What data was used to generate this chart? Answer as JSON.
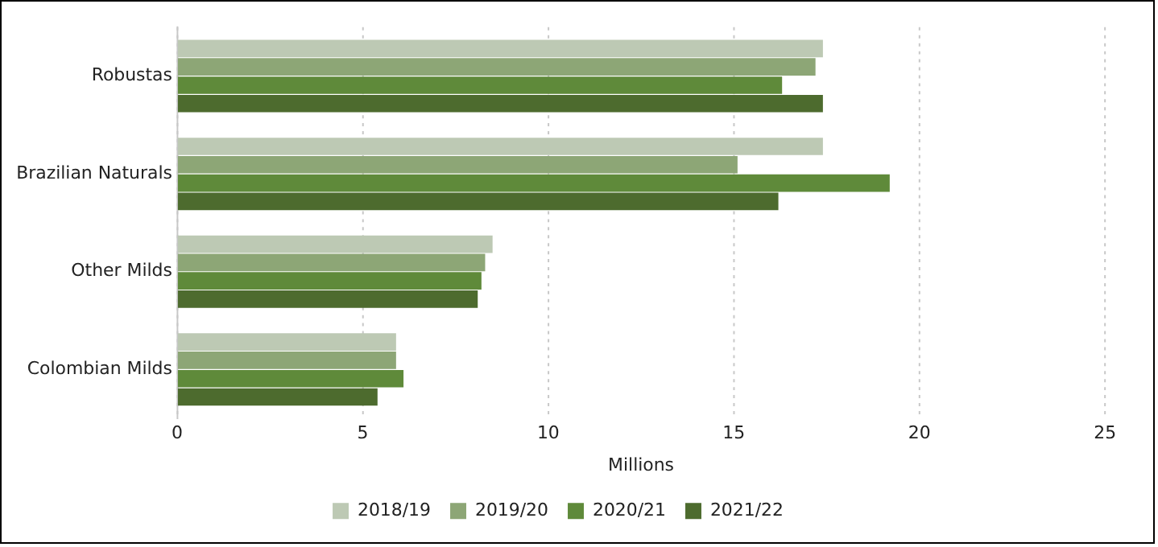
{
  "chart_data": {
    "type": "bar",
    "orientation": "horizontal",
    "xlabel": "Millions",
    "categories": [
      "Robustas",
      "Brazilian Naturals",
      "Other Milds",
      "Colombian Milds"
    ],
    "series": [
      {
        "name": "2018/19",
        "color": "#bdc9b4",
        "values": [
          17.4,
          17.4,
          8.5,
          5.9
        ]
      },
      {
        "name": "2019/20",
        "color": "#8da676",
        "values": [
          17.2,
          15.1,
          8.3,
          5.9
        ]
      },
      {
        "name": "2020/21",
        "color": "#5f8a3a",
        "values": [
          16.3,
          19.2,
          8.2,
          6.1
        ]
      },
      {
        "name": "2021/22",
        "color": "#4d6b2e",
        "values": [
          17.4,
          16.2,
          8.1,
          5.4
        ]
      }
    ],
    "xlim": [
      0,
      25
    ],
    "xticks": [
      0,
      5,
      10,
      15,
      20,
      25
    ],
    "grid": "x",
    "legend": "bottom"
  }
}
